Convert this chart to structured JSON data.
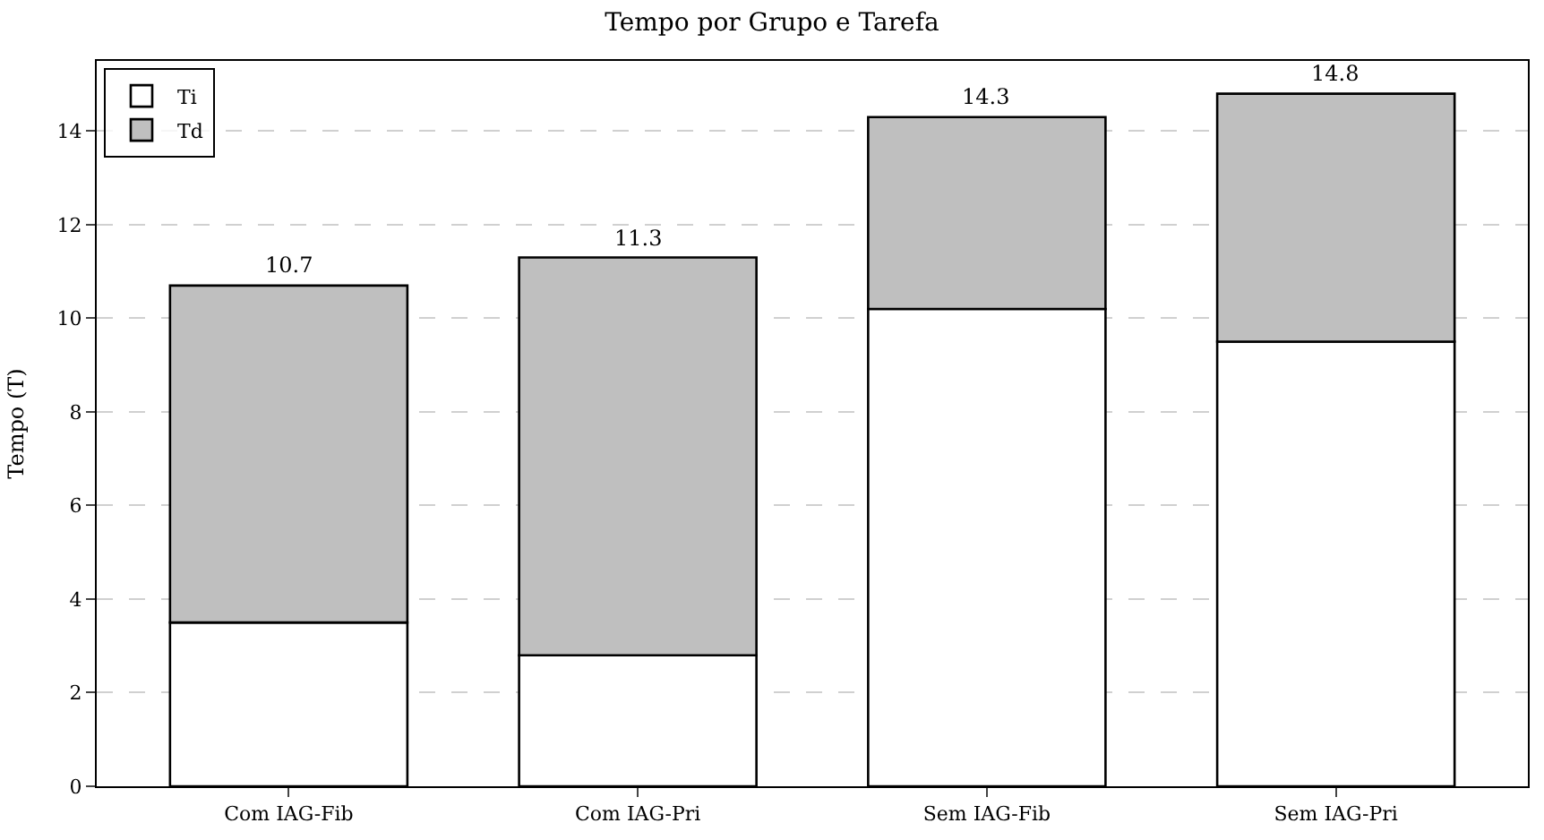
{
  "chart_data": {
    "type": "bar",
    "title": "Tempo por Grupo e Tarefa",
    "ylabel": "Tempo (T)",
    "categories": [
      "Com IAG-Fib",
      "Com IAG-Pri",
      "Sem IAG-Fib",
      "Sem IAG-Pri"
    ],
    "stacked": true,
    "series": [
      {
        "name": "Ti",
        "color": "#ffffff",
        "values": [
          3.5,
          2.8,
          10.2,
          9.5
        ]
      },
      {
        "name": "Td",
        "color": "#bfbfbf",
        "values": [
          7.2,
          8.5,
          4.1,
          5.3
        ]
      }
    ],
    "totals": [
      "10.7",
      "11.3",
      "14.3",
      "14.8"
    ],
    "ylim": [
      0,
      15.5
    ],
    "yticks": [
      0,
      2,
      4,
      6,
      8,
      10,
      12,
      14
    ],
    "grid": "y",
    "legend": "top left"
  }
}
